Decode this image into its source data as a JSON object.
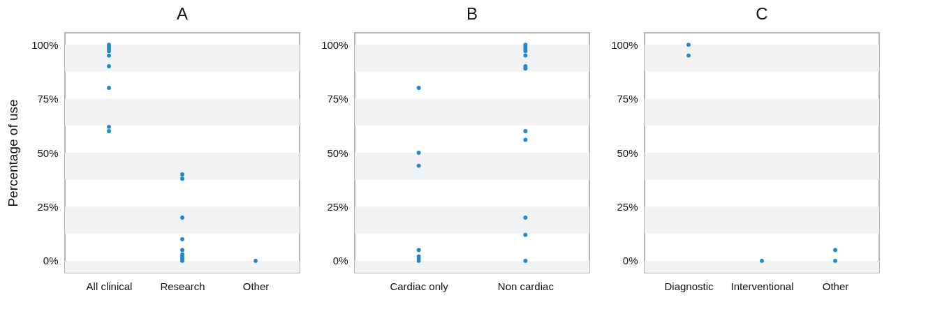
{
  "chart_data": [
    {
      "type": "scatter",
      "title": "A",
      "ylabel": "Percentage of use",
      "categories": [
        "All clinical",
        "Research",
        "Other"
      ],
      "ylim": [
        -5.5,
        105.5
      ],
      "yticks": [
        {
          "value": 0,
          "label": "0%"
        },
        {
          "value": 25,
          "label": "25%"
        },
        {
          "value": 50,
          "label": "50%"
        },
        {
          "value": 75,
          "label": "75%"
        },
        {
          "value": 100,
          "label": "100%"
        }
      ],
      "bands": [
        {
          "axis": "y",
          "from": -5.5,
          "to": 0,
          "color": "#f1f2f4"
        },
        {
          "axis": "y",
          "from": 12.5,
          "to": 25,
          "color": "#f1f2f4"
        },
        {
          "axis": "y",
          "from": 37.5,
          "to": 50,
          "color": "#f1f2f4"
        },
        {
          "axis": "y",
          "from": 62.5,
          "to": 75,
          "color": "#f1f2f4"
        },
        {
          "axis": "y",
          "from": 87.5,
          "to": 100,
          "color": "#f1f2f4"
        }
      ],
      "series": [
        {
          "color": "#1f88cc",
          "x": [
            "All clinical",
            "All clinical",
            "All clinical",
            "All clinical",
            "All clinical",
            "All clinical",
            "All clinical",
            "All clinical",
            "All clinical",
            "Research",
            "Research",
            "Research",
            "Research",
            "Research",
            "Research",
            "Research",
            "Research",
            "Research",
            "Other"
          ],
          "values": [
            100,
            99,
            98,
            97,
            95,
            90,
            80,
            62,
            60,
            40,
            38,
            20,
            10,
            5,
            3,
            2,
            1,
            0,
            0
          ]
        }
      ]
    },
    {
      "type": "scatter",
      "title": "B",
      "categories": [
        "Cardiac only",
        "Non cardiac"
      ],
      "ylim": [
        -5.5,
        105.5
      ],
      "yticks": [
        {
          "value": 0,
          "label": "0%"
        },
        {
          "value": 25,
          "label": "25%"
        },
        {
          "value": 50,
          "label": "50%"
        },
        {
          "value": 75,
          "label": "75%"
        },
        {
          "value": 100,
          "label": "100%"
        }
      ],
      "bands": [
        {
          "axis": "y",
          "from": -5.5,
          "to": 0,
          "color": "#f1f2f4"
        },
        {
          "axis": "y",
          "from": 12.5,
          "to": 25,
          "color": "#f1f2f4"
        },
        {
          "axis": "y",
          "from": 37.5,
          "to": 50,
          "color": "#f1f2f4"
        },
        {
          "axis": "y",
          "from": 62.5,
          "to": 75,
          "color": "#f1f2f4"
        },
        {
          "axis": "y",
          "from": 87.5,
          "to": 100,
          "color": "#f1f2f4"
        }
      ],
      "series": [
        {
          "color": "#1f88cc",
          "x": [
            "Cardiac only",
            "Cardiac only",
            "Cardiac only",
            "Cardiac only",
            "Cardiac only",
            "Cardiac only",
            "Cardiac only",
            "Non cardiac",
            "Non cardiac",
            "Non cardiac",
            "Non cardiac",
            "Non cardiac",
            "Non cardiac",
            "Non cardiac",
            "Non cardiac",
            "Non cardiac",
            "Non cardiac",
            "Non cardiac",
            "Non cardiac"
          ],
          "values": [
            80,
            50,
            44,
            5,
            2,
            1,
            0,
            100,
            99,
            98,
            97,
            95,
            90,
            89,
            60,
            56,
            20,
            12,
            0
          ]
        }
      ]
    },
    {
      "type": "scatter",
      "title": "C",
      "categories": [
        "Diagnostic",
        "Interventional",
        "Other"
      ],
      "ylim": [
        -5.5,
        105.5
      ],
      "yticks": [
        {
          "value": 0,
          "label": "0%"
        },
        {
          "value": 25,
          "label": "25%"
        },
        {
          "value": 50,
          "label": "50%"
        },
        {
          "value": 75,
          "label": "75%"
        },
        {
          "value": 100,
          "label": "100%"
        }
      ],
      "bands": [
        {
          "axis": "y",
          "from": -5.5,
          "to": 0,
          "color": "#f1f2f4"
        },
        {
          "axis": "y",
          "from": 12.5,
          "to": 25,
          "color": "#f1f2f4"
        },
        {
          "axis": "y",
          "from": 37.5,
          "to": 50,
          "color": "#f1f2f4"
        },
        {
          "axis": "y",
          "from": 62.5,
          "to": 75,
          "color": "#f1f2f4"
        },
        {
          "axis": "y",
          "from": 87.5,
          "to": 100,
          "color": "#f1f2f4"
        }
      ],
      "series": [
        {
          "color": "#1f88cc",
          "x": [
            "Diagnostic",
            "Diagnostic",
            "Interventional",
            "Other",
            "Other"
          ],
          "values": [
            100,
            95,
            0,
            5,
            0
          ]
        }
      ]
    }
  ]
}
